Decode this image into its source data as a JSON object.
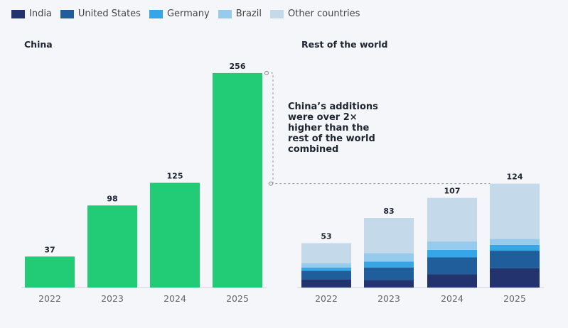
{
  "chart_data": [
    {
      "type": "bar",
      "title": "China",
      "categories": [
        "2022",
        "2023",
        "2024",
        "2025"
      ],
      "values": [
        37,
        98,
        125,
        256
      ],
      "color": "#22cc77"
    },
    {
      "type": "bar",
      "stacked": true,
      "title": "Rest of the world",
      "categories": [
        "2022",
        "2023",
        "2024",
        "2025"
      ],
      "totals": [
        53,
        83,
        107,
        124
      ],
      "series": [
        {
          "name": "India",
          "values": [
            10,
            9,
            16,
            23
          ],
          "color": "#22336e"
        },
        {
          "name": "United States",
          "values": [
            10,
            15,
            20,
            21
          ],
          "color": "#1f5e9a"
        },
        {
          "name": "Germany",
          "values": [
            4,
            7,
            9,
            7
          ],
          "color": "#37a6e6"
        },
        {
          "name": "Brazil",
          "values": [
            5,
            10,
            10,
            7
          ],
          "color": "#96cbed"
        },
        {
          "name": "Other countries",
          "values": [
            24,
            42,
            52,
            66
          ],
          "color": "#c4d9e9"
        }
      ]
    }
  ],
  "legend_position": "top-left",
  "annotation": "China’s additions were over 2× higher than the rest of the world combined"
}
